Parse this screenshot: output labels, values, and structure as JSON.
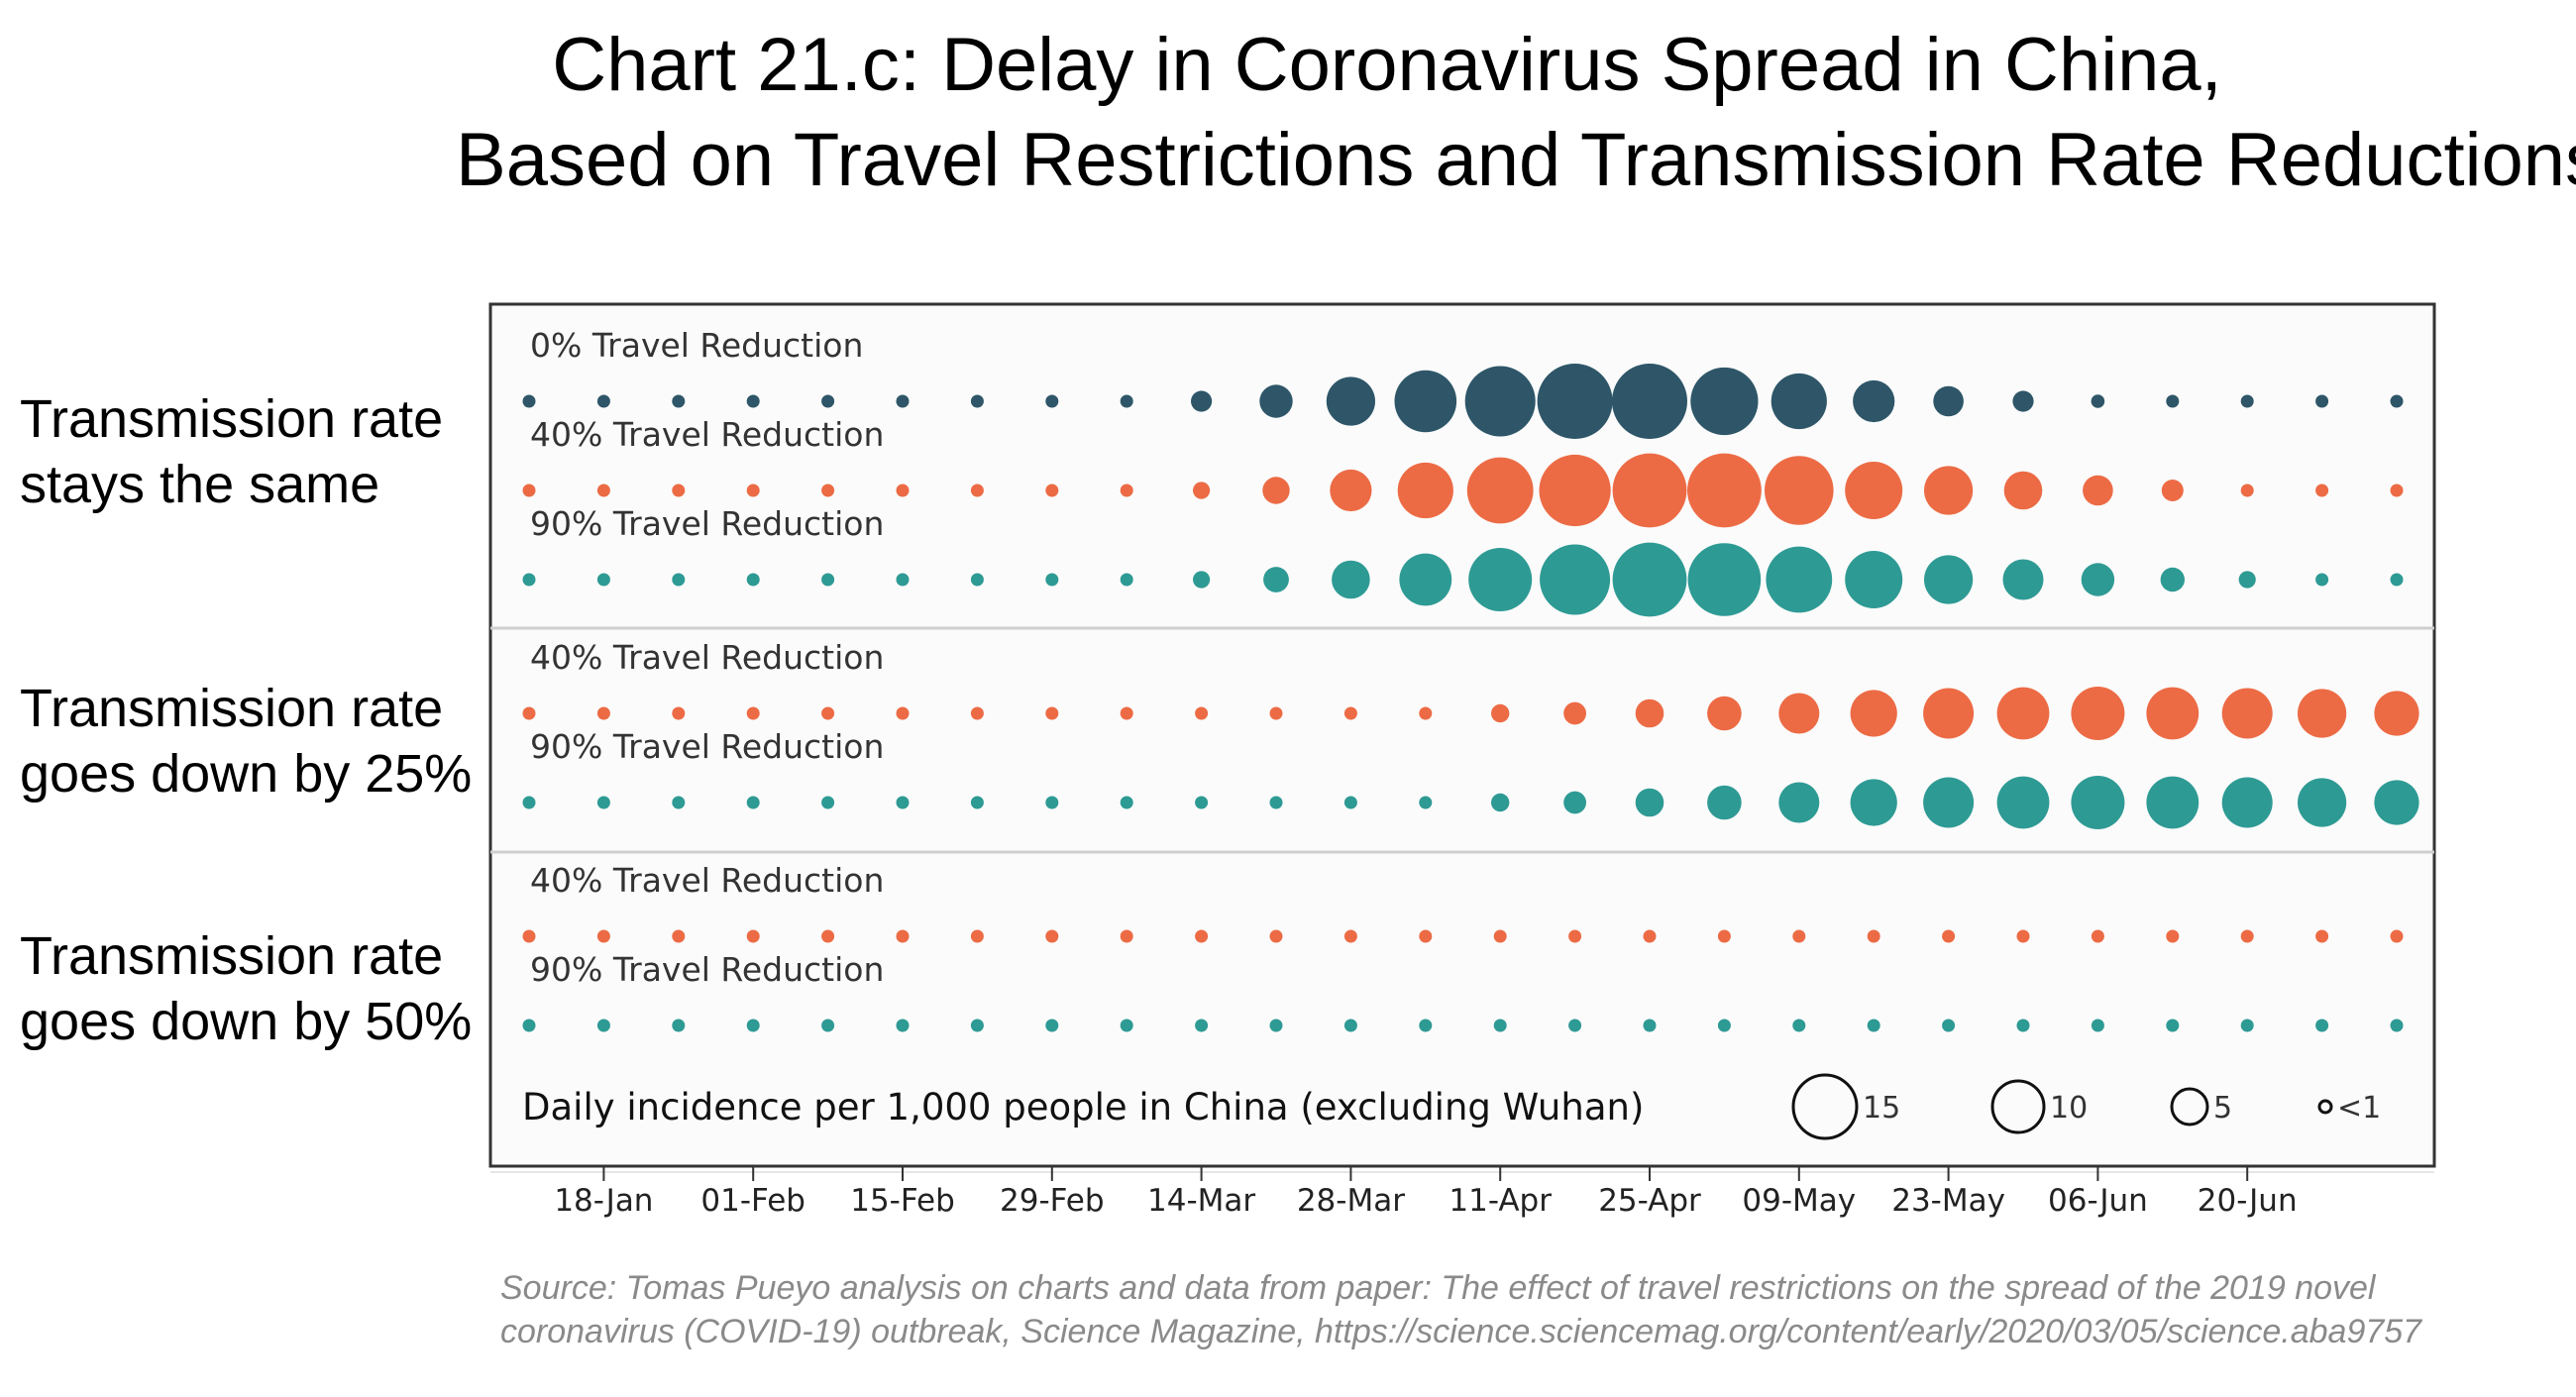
{
  "title": {
    "line1": "Chart 21.c: Delay in Coronavirus Spread in China,",
    "line2": "Based on Travel Restrictions and Transmission Rate Reductions"
  },
  "groups": [
    {
      "label_line1": "Transmission rate",
      "label_line2": "stays the same"
    },
    {
      "label_line1": "Transmission rate",
      "label_line2": "goes down by 25%"
    },
    {
      "label_line1": "Transmission rate",
      "label_line2": "goes down by 50%"
    }
  ],
  "source_text": "Source: Tomas Pueyo analysis on charts and data from paper: The effect of travel restrictions on the spread of the 2019 novel coronavirus (COVID-19) outbreak, Science Magazine, https://science.sciencemag.org/content/early/2020/03/05/science.aba9757",
  "colors": {
    "dark": "#2e5668",
    "orange": "#ec6b45",
    "teal": "#2e9a94"
  },
  "chart_data": {
    "type": "bubble-timeline",
    "title": "Daily incidence per 1,000 people in China (excluding Wuhan)",
    "x_tick_labels": [
      "18-Jan",
      "01-Feb",
      "15-Feb",
      "29-Feb",
      "14-Mar",
      "28-Mar",
      "11-Apr",
      "25-Apr",
      "09-May",
      "23-May",
      "06-Jun",
      "20-Jun"
    ],
    "x_tick_indices": [
      1,
      3,
      5,
      7,
      9,
      11,
      13,
      15,
      17,
      19,
      21,
      23
    ],
    "points_per_row": 26,
    "interval_days": 7,
    "size_legend": [
      {
        "value": 15,
        "label": "15"
      },
      {
        "value": 10,
        "label": "10"
      },
      {
        "value": 5,
        "label": "5"
      },
      {
        "value": 0.5,
        "label": "<1"
      }
    ],
    "series": [
      {
        "group": 0,
        "name": "0% Travel Reduction",
        "color": "dark",
        "values": [
          0.2,
          0.2,
          0.2,
          0.2,
          0.2,
          0.2,
          0.2,
          0.2,
          0.2,
          1.2,
          3.0,
          6.5,
          10.5,
          13.5,
          15.5,
          15.5,
          12.5,
          8.5,
          4.8,
          2.5,
          1.2,
          0.5,
          0.2,
          0.2,
          0.2,
          0.2
        ]
      },
      {
        "group": 0,
        "name": "40% Travel Reduction",
        "color": "orange",
        "values": [
          0.2,
          0.2,
          0.2,
          0.2,
          0.2,
          0.2,
          0.2,
          0.2,
          0.2,
          0.8,
          2.0,
          4.8,
          8.5,
          12.0,
          14.0,
          15.0,
          15.0,
          13.0,
          9.0,
          6.5,
          4.0,
          2.5,
          1.3,
          0.2,
          0.2,
          0.2
        ]
      },
      {
        "group": 0,
        "name": "90% Travel Reduction",
        "color": "teal",
        "values": [
          0.2,
          0.2,
          0.2,
          0.2,
          0.2,
          0.2,
          0.2,
          0.2,
          0.2,
          0.8,
          1.8,
          4.0,
          7.5,
          11.0,
          13.5,
          15.0,
          14.5,
          12.0,
          9.0,
          6.5,
          4.5,
          3.0,
          1.6,
          0.8,
          0.2,
          0.2
        ]
      },
      {
        "group": 1,
        "name": "40% Travel Reduction",
        "color": "orange",
        "values": [
          0.2,
          0.2,
          0.2,
          0.2,
          0.2,
          0.2,
          0.2,
          0.2,
          0.2,
          0.2,
          0.2,
          0.2,
          0.2,
          0.9,
          1.4,
          2.2,
          3.2,
          4.5,
          6.0,
          7.0,
          7.5,
          7.8,
          7.5,
          7.0,
          6.5,
          5.5
        ]
      },
      {
        "group": 1,
        "name": "90% Travel Reduction",
        "color": "teal",
        "values": [
          0.2,
          0.2,
          0.2,
          0.2,
          0.2,
          0.2,
          0.2,
          0.2,
          0.2,
          0.2,
          0.2,
          0.2,
          0.2,
          0.9,
          1.4,
          2.2,
          3.2,
          4.5,
          6.0,
          7.0,
          7.5,
          7.8,
          7.5,
          7.0,
          6.5,
          5.5
        ]
      },
      {
        "group": 2,
        "name": "40% Travel Reduction",
        "color": "orange",
        "values": [
          0.2,
          0.2,
          0.2,
          0.2,
          0.2,
          0.2,
          0.2,
          0.2,
          0.2,
          0.2,
          0.2,
          0.2,
          0.2,
          0.2,
          0.2,
          0.2,
          0.2,
          0.2,
          0.2,
          0.2,
          0.2,
          0.2,
          0.2,
          0.2,
          0.2,
          0.2
        ]
      },
      {
        "group": 2,
        "name": "90% Travel Reduction",
        "color": "teal",
        "values": [
          0.2,
          0.2,
          0.2,
          0.2,
          0.2,
          0.2,
          0.2,
          0.2,
          0.2,
          0.2,
          0.2,
          0.2,
          0.2,
          0.2,
          0.2,
          0.2,
          0.2,
          0.2,
          0.2,
          0.2,
          0.2,
          0.2,
          0.2,
          0.2,
          0.2,
          0.2
        ]
      }
    ]
  }
}
